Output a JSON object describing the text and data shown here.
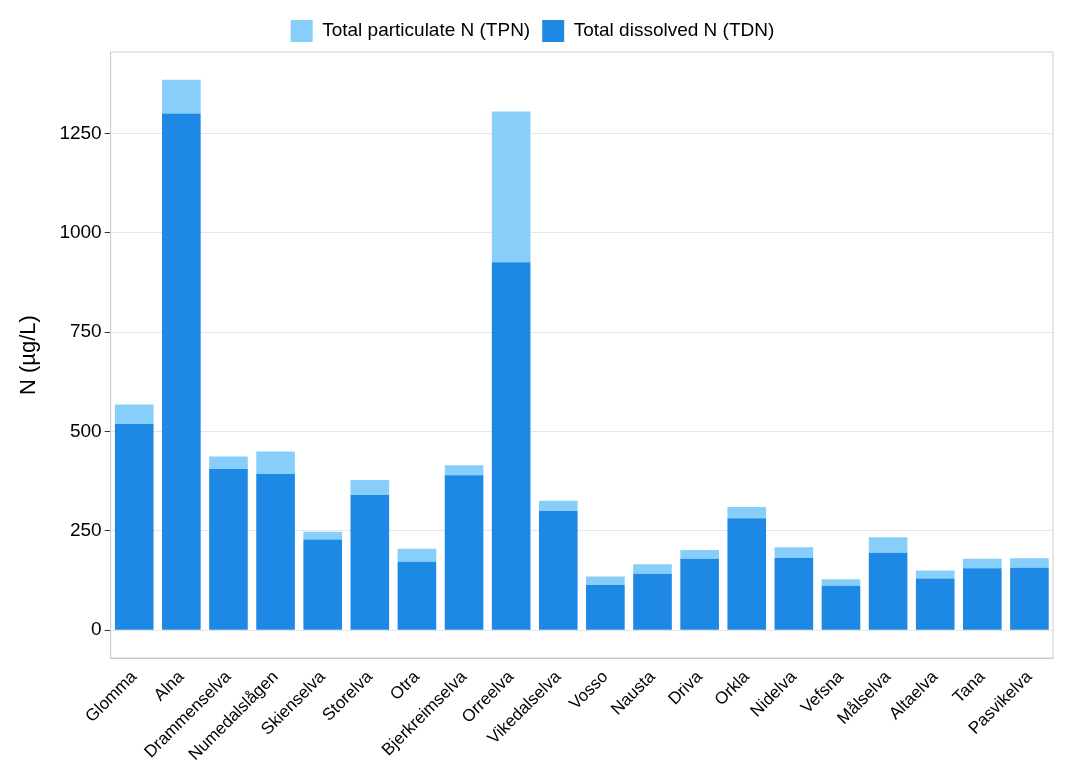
{
  "chart_data": {
    "type": "bar",
    "stacked": true,
    "ylabel": "N (µg/L)",
    "categories": [
      "Glomma",
      "Alna",
      "Drammenselva",
      "Numedalslågen",
      "Skienselva",
      "Storelva",
      "Otra",
      "Bjerkreimselva",
      "Orreelva",
      "Vikedalselva",
      "Vosso",
      "Nausta",
      "Driva",
      "Orkla",
      "Nidelva",
      "Vefsna",
      "Målselva",
      "Altaelva",
      "Tana",
      "Pasvikelva"
    ],
    "series": [
      {
        "name": "Total dissolved N (TDN)",
        "color": "#1e88e5",
        "values": [
          519,
          1300,
          406,
          393,
          228,
          340,
          172,
          390,
          926,
          300,
          114,
          142,
          180,
          282,
          182,
          112,
          195,
          130,
          156,
          157
        ]
      },
      {
        "name": "Total particulate N (TPN)",
        "color": "#87cefa",
        "values": [
          49,
          85,
          31,
          57,
          20,
          38,
          33,
          25,
          379,
          26,
          21,
          24,
          22,
          28,
          27,
          16,
          39,
          20,
          24,
          24
        ]
      }
    ],
    "ylim": [
      -70,
      1455
    ],
    "yticks": [
      0,
      250,
      500,
      750,
      1000,
      1250
    ],
    "grid": "y",
    "legend": "top"
  }
}
